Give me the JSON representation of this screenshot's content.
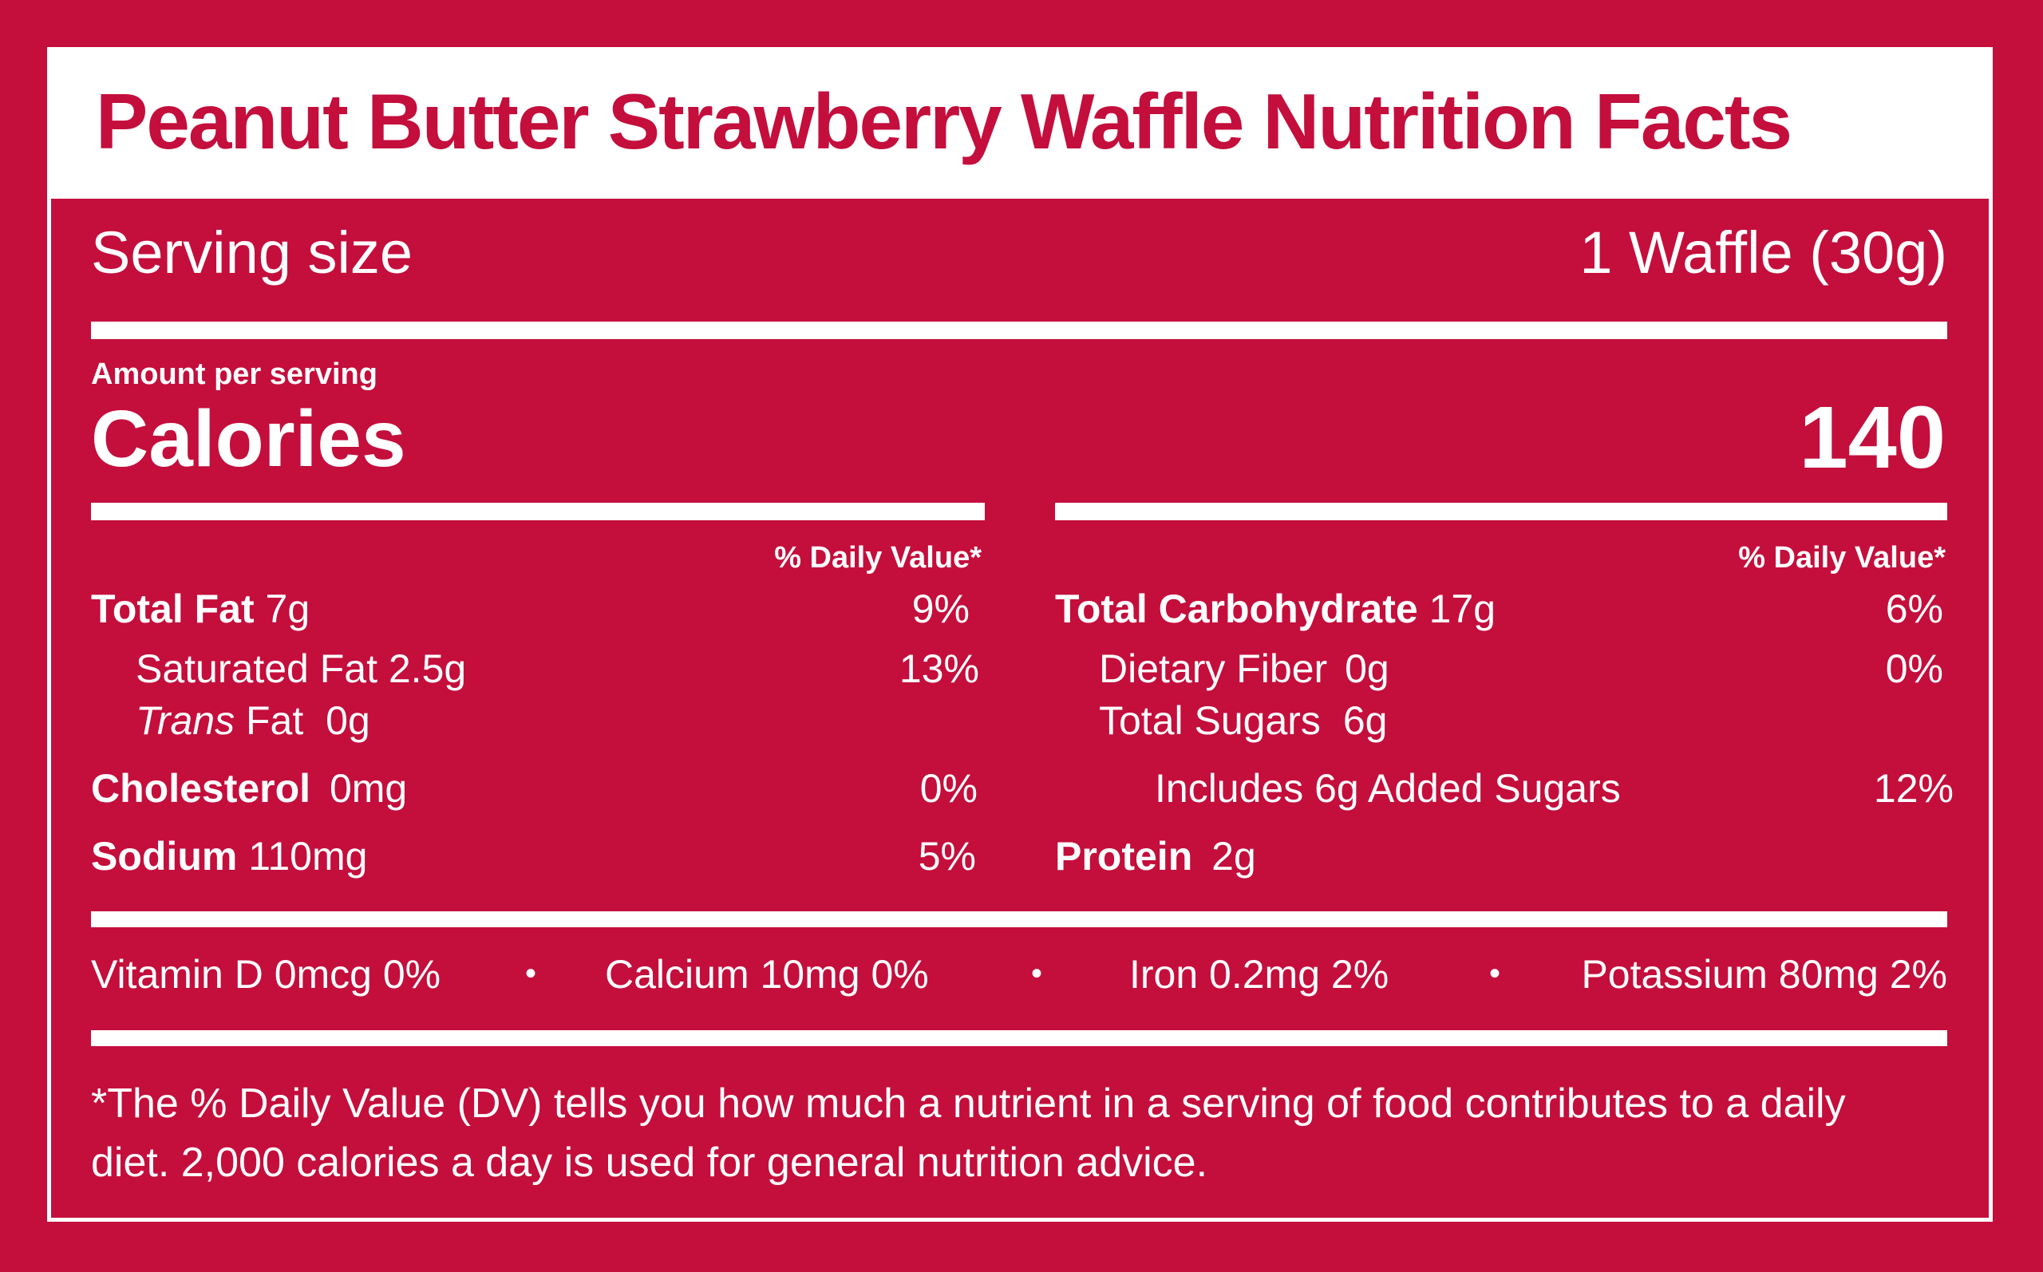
{
  "title": "Peanut Butter Strawberry Waffle Nutrition Facts",
  "serving": {
    "label": "Serving size",
    "value": "1 Waffle (30g)"
  },
  "calories": {
    "amount_label": "Amount per serving",
    "label": "Calories",
    "value": "140"
  },
  "left_column": {
    "dv_header": "% Daily Value*",
    "total_fat": {
      "label": "Total Fat",
      "amount": "7g",
      "dv": "9%"
    },
    "saturated_fat": {
      "label": "Saturated Fat",
      "amount": "2.5g",
      "dv": "13%"
    },
    "trans_fat": {
      "label_italic": "Trans",
      "label": "Fat",
      "amount": "0g"
    },
    "cholesterol": {
      "label": "Cholesterol",
      "amount": "0mg",
      "dv": "0%"
    },
    "sodium": {
      "label": "Sodium",
      "amount": "110mg",
      "dv": "5%"
    }
  },
  "right_column": {
    "dv_header": "% Daily Value*",
    "total_carbohydrate": {
      "label": "Total Carbohydrate",
      "amount": "17g",
      "dv": "6%"
    },
    "dietary_fiber": {
      "label": "Dietary Fiber",
      "amount": "0g",
      "dv": "0%"
    },
    "total_sugars": {
      "label": "Total Sugars",
      "amount": "6g"
    },
    "added_sugars": {
      "label": "Includes 6g Added Sugars",
      "dv": "12%"
    },
    "protein": {
      "label": "Protein",
      "amount": "2g"
    }
  },
  "vitamins": [
    {
      "text": "Vitamin D 0mcg 0%"
    },
    {
      "text": "Calcium 10mg 0%"
    },
    {
      "text": "Iron 0.2mg 2%"
    },
    {
      "text": "Potassium 80mg 2%"
    }
  ],
  "separator": "•",
  "footnote": "*The % Daily Value (DV) tells you how much a nutrient in a serving of food contributes to a daily diet. 2,000 calories a day is used for general nutrition advice.",
  "colors": {
    "background": "#C40E3C",
    "foreground": "#FFFFFF"
  }
}
